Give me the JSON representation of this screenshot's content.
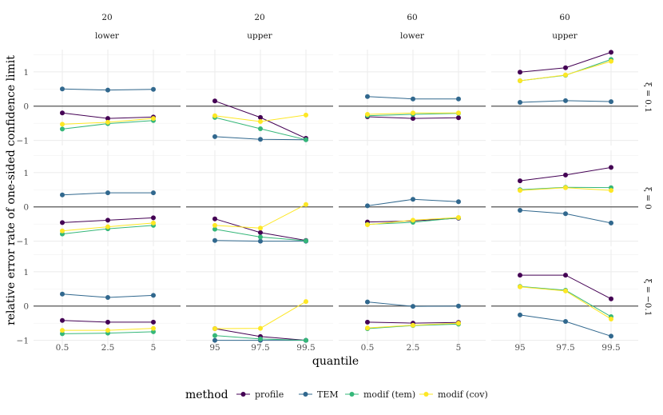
{
  "chart_data": {
    "type": "line",
    "xlabel": "quantile",
    "ylabel": "relative error rate of one-sided confidence limit",
    "ylim": [
      -1.15,
      1.65
    ],
    "y_ticks": [
      -1,
      0,
      1
    ],
    "grid": true,
    "legend_placement": "bottom",
    "legend": {
      "title": "method",
      "entries": [
        {
          "key": "profile",
          "label": "profile",
          "color": "#440154"
        },
        {
          "key": "tem",
          "label": "TEM",
          "color": "#31688E"
        },
        {
          "key": "modif_tem",
          "label": "modif (tem)",
          "color": "#35B779"
        },
        {
          "key": "modif_cov",
          "label": "modif (cov)",
          "color": "#FDE725"
        }
      ]
    },
    "columns": [
      {
        "n": "20",
        "side": "lower",
        "x_ticks": [
          "0.5",
          "2.5",
          "5"
        ]
      },
      {
        "n": "20",
        "side": "upper",
        "x_ticks": [
          "95",
          "97.5",
          "99.5"
        ]
      },
      {
        "n": "60",
        "side": "lower",
        "x_ticks": [
          "0.5",
          "2.5",
          "5"
        ]
      },
      {
        "n": "60",
        "side": "upper",
        "x_ticks": [
          "95",
          "97.5",
          "99.5"
        ]
      }
    ],
    "rows": [
      {
        "label": "ξ = 0.1"
      },
      {
        "label": "ξ = 0"
      },
      {
        "label": "ξ = −0.1"
      }
    ],
    "panels": [
      [
        {
          "profile": [
            -0.2,
            -0.36,
            -0.32
          ],
          "tem": [
            0.5,
            0.47,
            0.49
          ],
          "modif_tem": [
            -0.67,
            -0.51,
            -0.42
          ],
          "modif_cov": [
            -0.53,
            -0.47,
            -0.36
          ]
        },
        {
          "profile": [
            0.15,
            -0.33,
            -0.94
          ],
          "tem": [
            -0.89,
            -0.97,
            -0.98
          ],
          "modif_tem": [
            -0.33,
            -0.66,
            -0.98
          ],
          "modif_cov": [
            -0.28,
            -0.45,
            -0.26
          ]
        },
        {
          "profile": [
            -0.31,
            -0.36,
            -0.34
          ],
          "tem": [
            0.28,
            0.21,
            0.21
          ],
          "modif_tem": [
            -0.28,
            -0.24,
            -0.21
          ],
          "modif_cov": [
            -0.24,
            -0.2,
            -0.2
          ]
        },
        {
          "profile": [
            0.99,
            1.12,
            1.57
          ],
          "tem": [
            0.11,
            0.16,
            0.13
          ],
          "modif_tem": [
            0.74,
            0.9,
            1.36
          ],
          "modif_cov": [
            0.74,
            0.91,
            1.31
          ]
        }
      ],
      [
        {
          "profile": [
            -0.46,
            -0.39,
            -0.32
          ],
          "tem": [
            0.35,
            0.41,
            0.41
          ],
          "modif_tem": [
            -0.79,
            -0.64,
            -0.54
          ],
          "modif_cov": [
            -0.7,
            -0.58,
            -0.47
          ]
        },
        {
          "profile": [
            -0.35,
            -0.75,
            -0.98
          ],
          "tem": [
            -0.98,
            -1.0,
            -1.0
          ],
          "modif_tem": [
            -0.65,
            -0.88,
            -0.99
          ],
          "modif_cov": [
            -0.54,
            -0.62,
            0.07
          ]
        },
        {
          "profile": [
            -0.44,
            -0.41,
            -0.33
          ],
          "tem": [
            0.03,
            0.22,
            0.15
          ],
          "modif_tem": [
            -0.51,
            -0.45,
            -0.32
          ],
          "modif_cov": [
            -0.52,
            -0.39,
            -0.31
          ]
        },
        {
          "profile": [
            0.76,
            0.93,
            1.15
          ],
          "tem": [
            -0.1,
            -0.2,
            -0.47
          ],
          "modif_tem": [
            0.5,
            0.57,
            0.56
          ],
          "modif_cov": [
            0.48,
            0.56,
            0.48
          ]
        }
      ],
      [
        {
          "profile": [
            -0.42,
            -0.47,
            -0.47
          ],
          "tem": [
            0.35,
            0.25,
            0.31
          ],
          "modif_tem": [
            -0.81,
            -0.79,
            -0.75
          ],
          "modif_cov": [
            -0.71,
            -0.71,
            -0.65
          ]
        },
        {
          "profile": [
            -0.66,
            -0.89,
            -1.0
          ],
          "tem": [
            -1.0,
            -1.0,
            -1.0
          ],
          "modif_tem": [
            -0.86,
            -0.96,
            -1.0
          ],
          "modif_cov": [
            -0.66,
            -0.65,
            0.13
          ]
        },
        {
          "profile": [
            -0.47,
            -0.5,
            -0.48
          ],
          "tem": [
            0.12,
            -0.01,
            0.0
          ],
          "modif_tem": [
            -0.66,
            -0.57,
            -0.53
          ],
          "modif_cov": [
            -0.64,
            -0.56,
            -0.5
          ]
        },
        {
          "profile": [
            0.9,
            0.9,
            0.21
          ],
          "tem": [
            -0.26,
            -0.45,
            -0.88
          ],
          "modif_tem": [
            0.57,
            0.46,
            -0.31
          ],
          "modif_cov": [
            0.56,
            0.44,
            -0.38
          ]
        }
      ]
    ]
  }
}
